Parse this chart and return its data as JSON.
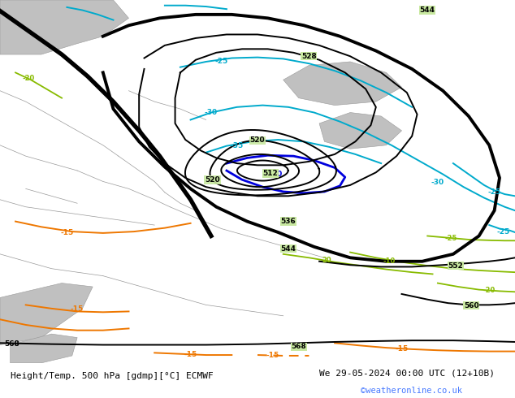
{
  "title_left": "Height/Temp. 500 hPa [gdmp][°C] ECMWF",
  "title_right": "We 29-05-2024 00:00 UTC (12+10B)",
  "watermark": "©weatheronline.co.uk",
  "bg_land": "#c8e8a0",
  "bg_sea": "#c0c0c0",
  "border_color": "#999999",
  "black": "#000000",
  "cyan": "#00aacc",
  "blue": "#0000dd",
  "green_t": "#88bb00",
  "orange_t": "#ee7700",
  "footer_bg": "#ffffff",
  "title_color": "#000000",
  "watermark_color": "#4477ff"
}
